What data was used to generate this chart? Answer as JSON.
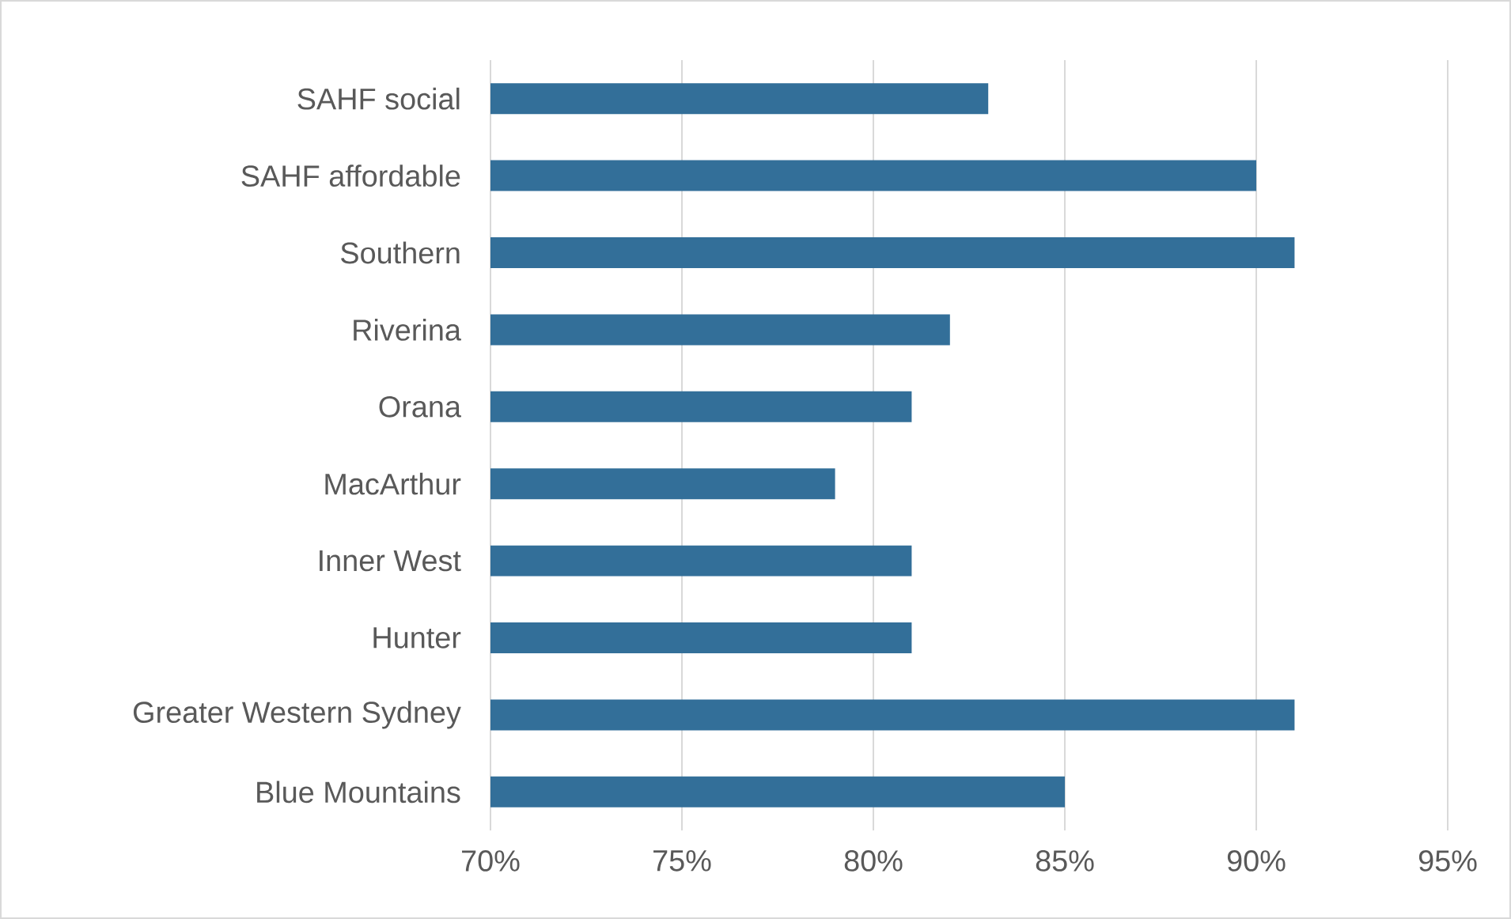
{
  "chart_data": {
    "type": "bar",
    "orientation": "horizontal",
    "categories": [
      "SAHF social",
      "SAHF affordable",
      "Southern",
      "Riverina",
      "Orana",
      "MacArthur",
      "Inner West",
      "Hunter",
      "Greater Western Sydney",
      "Blue Mountains"
    ],
    "values": [
      83,
      90,
      91,
      82,
      81,
      79,
      81,
      81,
      91,
      85
    ],
    "color": "#336f99",
    "xlim": [
      70,
      95
    ],
    "xticks": [
      {
        "value": 70,
        "label": "70%"
      },
      {
        "value": 75,
        "label": "75%"
      },
      {
        "value": 80,
        "label": "80%"
      },
      {
        "value": 85,
        "label": "85%"
      },
      {
        "value": 90,
        "label": "90%"
      },
      {
        "value": 95,
        "label": "95%"
      }
    ],
    "grid": "x"
  }
}
